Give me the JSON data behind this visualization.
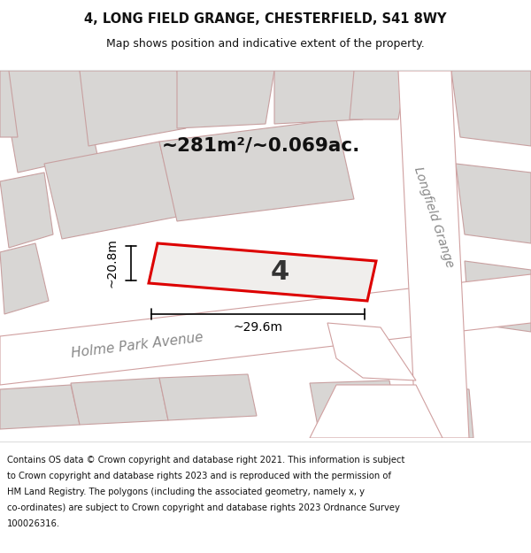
{
  "title": "4, LONG FIELD GRANGE, CHESTERFIELD, S41 8WY",
  "subtitle": "Map shows position and indicative extent of the property.",
  "area_text": "~281m²/~0.069ac.",
  "plot_label": "4",
  "dim_width": "~29.6m",
  "dim_height": "~20.8m",
  "road_label_left": "Holme Park Avenue",
  "road_label_right": "Longfield Grange",
  "footer_line1": "Contains OS data © Crown copyright and database right 2021. This information is subject",
  "footer_line2": "to Crown copyright and database rights 2023 and is reproduced with the permission of",
  "footer_line3": "HM Land Registry. The polygons (including the associated geometry, namely x, y",
  "footer_line4": "co-ordinates) are subject to Crown copyright and database rights 2023 Ordnance Survey",
  "footer_line5": "100026316.",
  "map_bg": "#e8e8e8",
  "plot_fill": "#f0eeec",
  "plot_edge": "#dd0000",
  "bg_poly_fill": "#d8d6d4",
  "bg_poly_edge": "#c8a0a0",
  "road_fill": "#ffffff",
  "road_edge": "#d0a0a0",
  "white_bg": "#ffffff",
  "header_sep_color": "#dddddd",
  "footer_sep_color": "#dddddd",
  "text_dark": "#111111",
  "text_gray": "#888888",
  "dim_color": "#000000"
}
